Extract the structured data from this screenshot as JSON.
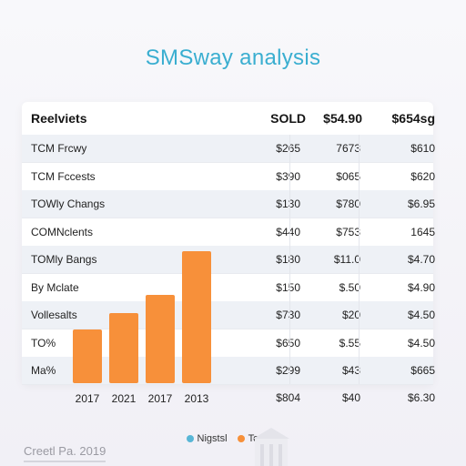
{
  "title": "SMSway analysis",
  "table": {
    "headers": [
      "Reelviets",
      "SOLD",
      "$54.90",
      "$654sg"
    ],
    "rows": [
      {
        "label": "TCM Frcwy",
        "c1": "$265",
        "c2": "7673",
        "c3": "$610"
      },
      {
        "label": "TCM Fccests",
        "c1": "$390",
        "c2": "$065",
        "c3": "$620"
      },
      {
        "label": "TOWly Changs",
        "c1": "$130",
        "c2": "$780",
        "c3": "$6.95"
      },
      {
        "label": "COMNclents",
        "c1": "$440",
        "c2": "$753",
        "c3": "1645"
      },
      {
        "label": "TOMly Bangs",
        "c1": "$180",
        "c2": "$11.0",
        "c3": "$4.70"
      },
      {
        "label": "By Mclate",
        "c1": "$150",
        "c2": "$.50",
        "c3": "$4.90"
      },
      {
        "label": "Vollesalts",
        "c1": "$730",
        "c2": "$20",
        "c3": "$4.50"
      },
      {
        "label": "TO%",
        "c1": "$650",
        "c2": "$.55",
        "c3": "$4.50"
      },
      {
        "label": "Ma%",
        "c1": "$299",
        "c2": "$43",
        "c3": "$665"
      }
    ],
    "bottom": {
      "c1": "$804",
      "c2": "$40",
      "c3": "$6.30"
    }
  },
  "chart_data": {
    "type": "bar",
    "categories": [
      "2017",
      "2021",
      "2017",
      "2013"
    ],
    "values": [
      59,
      77,
      97,
      145
    ],
    "ylim": [
      0,
      160
    ],
    "color": "#f7903a"
  },
  "legend": [
    {
      "label": "Nigstsl",
      "color": "#58b6d6"
    },
    {
      "label": "Torway",
      "color": "#f7903a"
    }
  ],
  "credit": "Creetl Pa. 2019"
}
